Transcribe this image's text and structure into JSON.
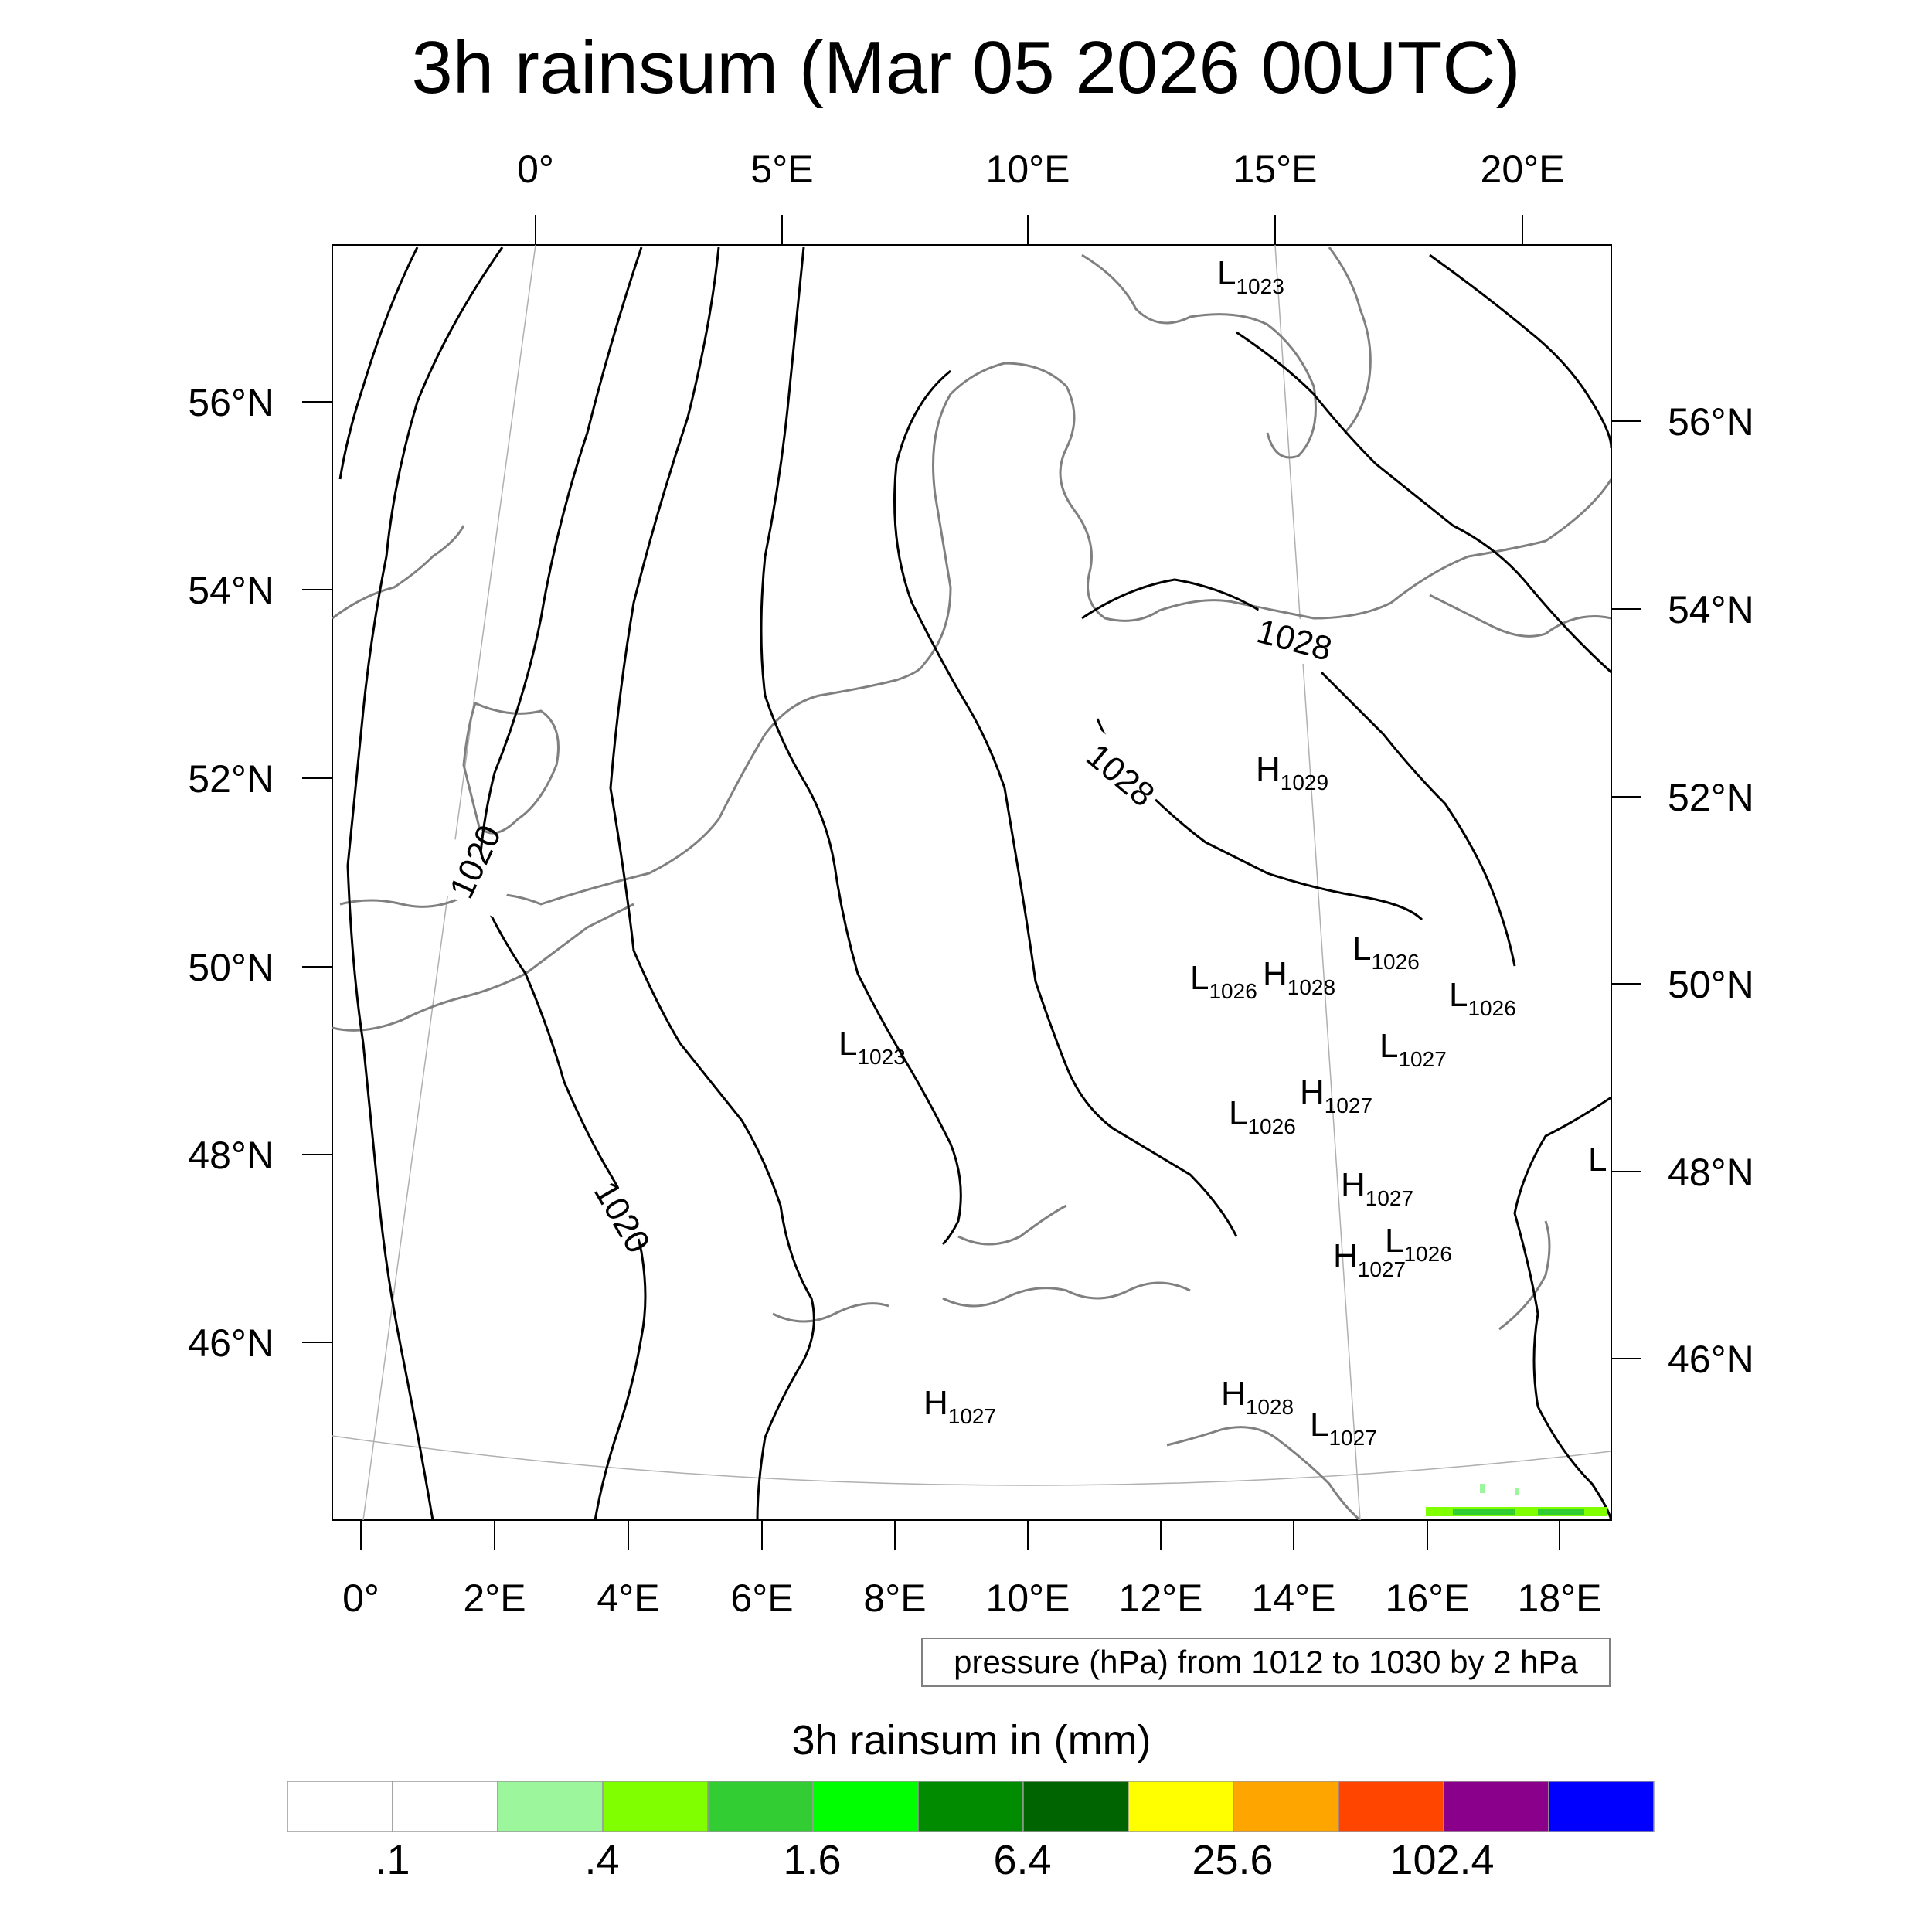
{
  "title": "3h rainsum (Mar 05 2026 00UTC)",
  "top_lon_labels": [
    "0°",
    "5°E",
    "10°E",
    "15°E",
    "20°E"
  ],
  "bottom_lon_labels": [
    "0°",
    "2°E",
    "4°E",
    "6°E",
    "8°E",
    "10°E",
    "12°E",
    "14°E",
    "16°E",
    "18°E"
  ],
  "left_lat_labels": [
    "56°N",
    "54°N",
    "52°N",
    "50°N",
    "48°N",
    "46°N"
  ],
  "right_lat_labels": [
    "56°N",
    "54°N",
    "52°N",
    "50°N",
    "48°N",
    "46°N"
  ],
  "contour_labels": [
    "1020",
    "1020",
    "1028",
    "1028"
  ],
  "pressure_centers": [
    {
      "type": "L",
      "value": "1023"
    },
    {
      "type": "H",
      "value": "1029"
    },
    {
      "type": "L",
      "value": "1026"
    },
    {
      "type": "L",
      "value": "1026"
    },
    {
      "type": "H",
      "value": "1028"
    },
    {
      "type": "L",
      "value": "1026"
    },
    {
      "type": "L",
      "value": "1023"
    },
    {
      "type": "L",
      "value": "1027"
    },
    {
      "type": "H",
      "value": "1027"
    },
    {
      "type": "L",
      "value": "1026"
    },
    {
      "type": "H",
      "value": "1027"
    },
    {
      "type": "L",
      "value": "1026"
    },
    {
      "type": "H",
      "value": "1027"
    },
    {
      "type": "H",
      "value": "1027"
    },
    {
      "type": "H",
      "value": "1028"
    },
    {
      "type": "L",
      "value": "1027"
    },
    {
      "type": "L",
      "value": ""
    }
  ],
  "info_box": "pressure (hPa) from 1012 to 1030 by 2 hPa",
  "colorbar": {
    "title": "3h rainsum in (mm)",
    "colors": [
      "#ffffff",
      "#ffffff",
      "#9cf79c",
      "#80ff00",
      "#32cd32",
      "#00ff00",
      "#008b00",
      "#006400",
      "#ffff00",
      "#ffa500",
      "#ff4500",
      "#8b008b",
      "#0000ff"
    ],
    "labels": [
      ".1",
      ".4",
      "1.6",
      "6.4",
      "25.6",
      "102.4"
    ]
  },
  "colors": {
    "coastline": "#808080",
    "isobar": "#000000",
    "rain_light": "#80ff00",
    "rain_mid": "#32cd32"
  }
}
